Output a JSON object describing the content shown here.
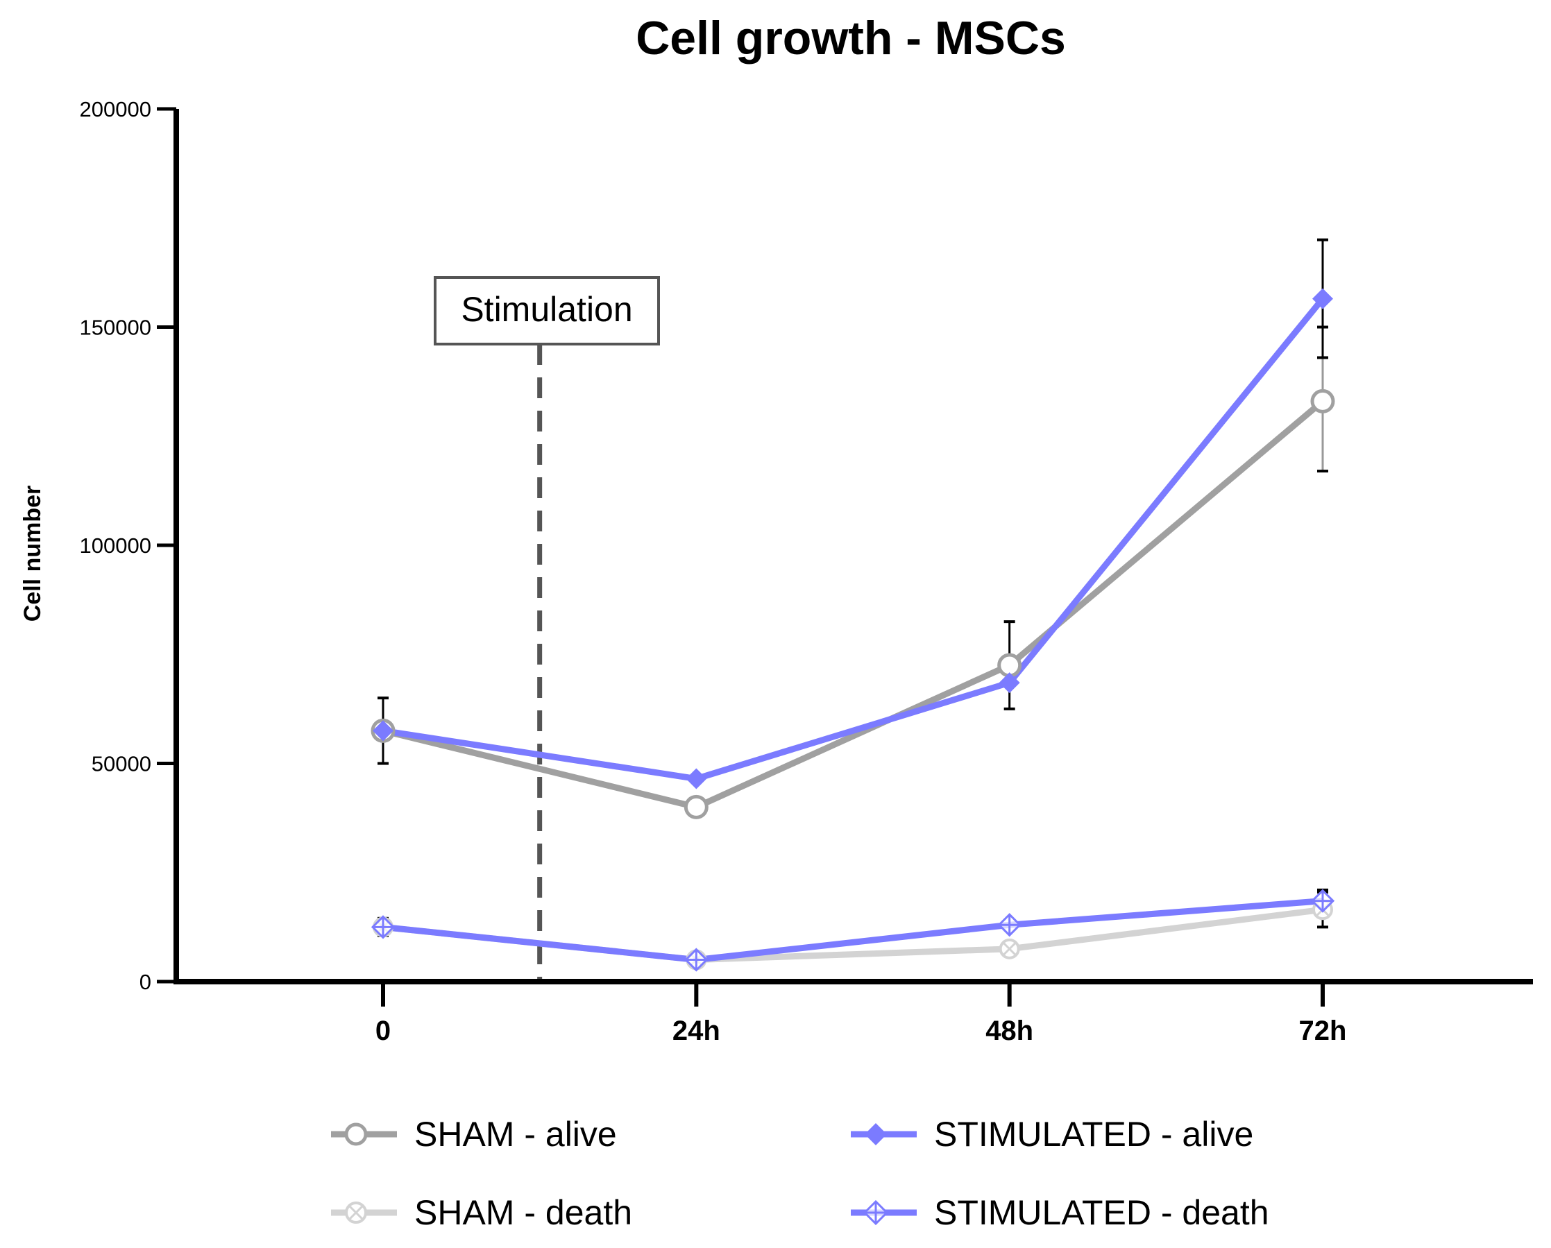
{
  "chart_data": {
    "type": "line",
    "title": "Cell growth - MSCs",
    "xlabel": "",
    "ylabel": "Cell number",
    "categories": [
      "0",
      "24h",
      "48h",
      "72h"
    ],
    "x": [
      0,
      24,
      48,
      72
    ],
    "ylim": [
      0,
      200000
    ],
    "yticks": [
      0,
      50000,
      100000,
      150000,
      200000
    ],
    "ytick_labels": [
      "0",
      "50000",
      "100000",
      "150000",
      "200000"
    ],
    "grid": false,
    "legend_placement": "bottom",
    "annotation": {
      "label": "Stimulation",
      "x": 12,
      "style": "dashed vertical line"
    },
    "series": [
      {
        "name": "SHAM - alive",
        "color": "#a0a0a0",
        "marker": "open-circle",
        "values": [
          57500,
          40000,
          72500,
          133000
        ],
        "error_low": [
          50000,
          null,
          62500,
          117000
        ],
        "error_high": [
          65000,
          null,
          82500,
          150000
        ]
      },
      {
        "name": "STIMULATED - alive",
        "color": "#7b7bff",
        "marker": "filled-diamond",
        "values": [
          57500,
          46500,
          68500,
          156500
        ],
        "error_low": [
          null,
          null,
          null,
          143000
        ],
        "error_high": [
          null,
          null,
          null,
          170000
        ]
      },
      {
        "name": "SHAM - death",
        "color": "#d3d3d3",
        "marker": "crossed-circle",
        "values": [
          12500,
          5000,
          7500,
          16500
        ],
        "error_low": [
          10500,
          null,
          null,
          12500
        ],
        "error_high": [
          14500,
          null,
          null,
          20500
        ]
      },
      {
        "name": "STIMULATED - death",
        "color": "#7b7bff",
        "marker": "open-crossed-diamond",
        "values": [
          12500,
          5000,
          13000,
          18500
        ],
        "error_low": [
          null,
          null,
          null,
          16500
        ],
        "error_high": [
          null,
          null,
          null,
          21000
        ]
      }
    ]
  }
}
